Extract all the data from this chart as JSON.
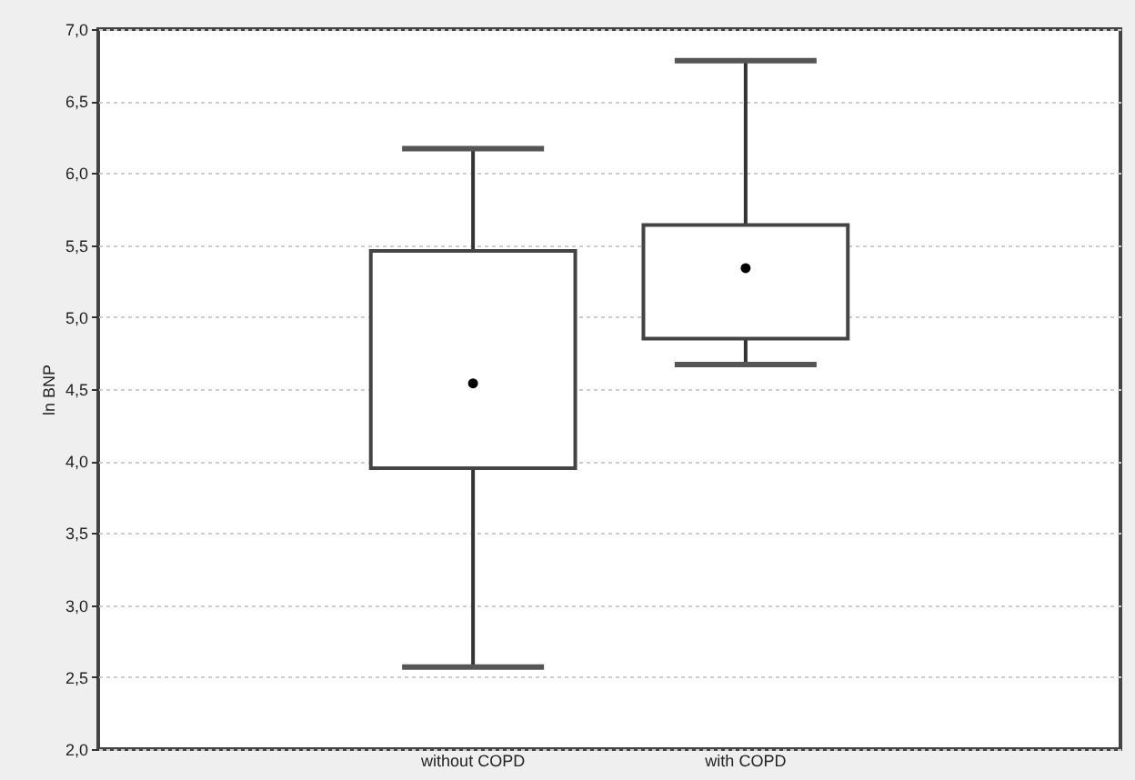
{
  "chart_data": {
    "type": "box",
    "ylabel": "ln BNP",
    "categories": [
      "without COPD",
      "with COPD"
    ],
    "boxes": [
      {
        "low": 2.57,
        "q1": 3.95,
        "median": 4.54,
        "q3": 5.46,
        "high": 6.17
      },
      {
        "low": 4.67,
        "q1": 4.85,
        "median": 5.34,
        "q3": 5.64,
        "high": 6.78
      }
    ],
    "ylim": [
      2.0,
      7.0
    ],
    "yticks": [
      {
        "value": 2.0,
        "label": "2,0"
      },
      {
        "value": 2.5,
        "label": "2,5"
      },
      {
        "value": 3.0,
        "label": "3,0"
      },
      {
        "value": 3.5,
        "label": "3,5"
      },
      {
        "value": 4.0,
        "label": "4,0"
      },
      {
        "value": 4.5,
        "label": "4,5"
      },
      {
        "value": 5.0,
        "label": "5,0"
      },
      {
        "value": 5.5,
        "label": "5,5"
      },
      {
        "value": 6.0,
        "label": "6,0"
      },
      {
        "value": 6.5,
        "label": "6,5"
      },
      {
        "value": 7.0,
        "label": "7,0"
      }
    ],
    "grid": "y",
    "marker": "circle"
  }
}
